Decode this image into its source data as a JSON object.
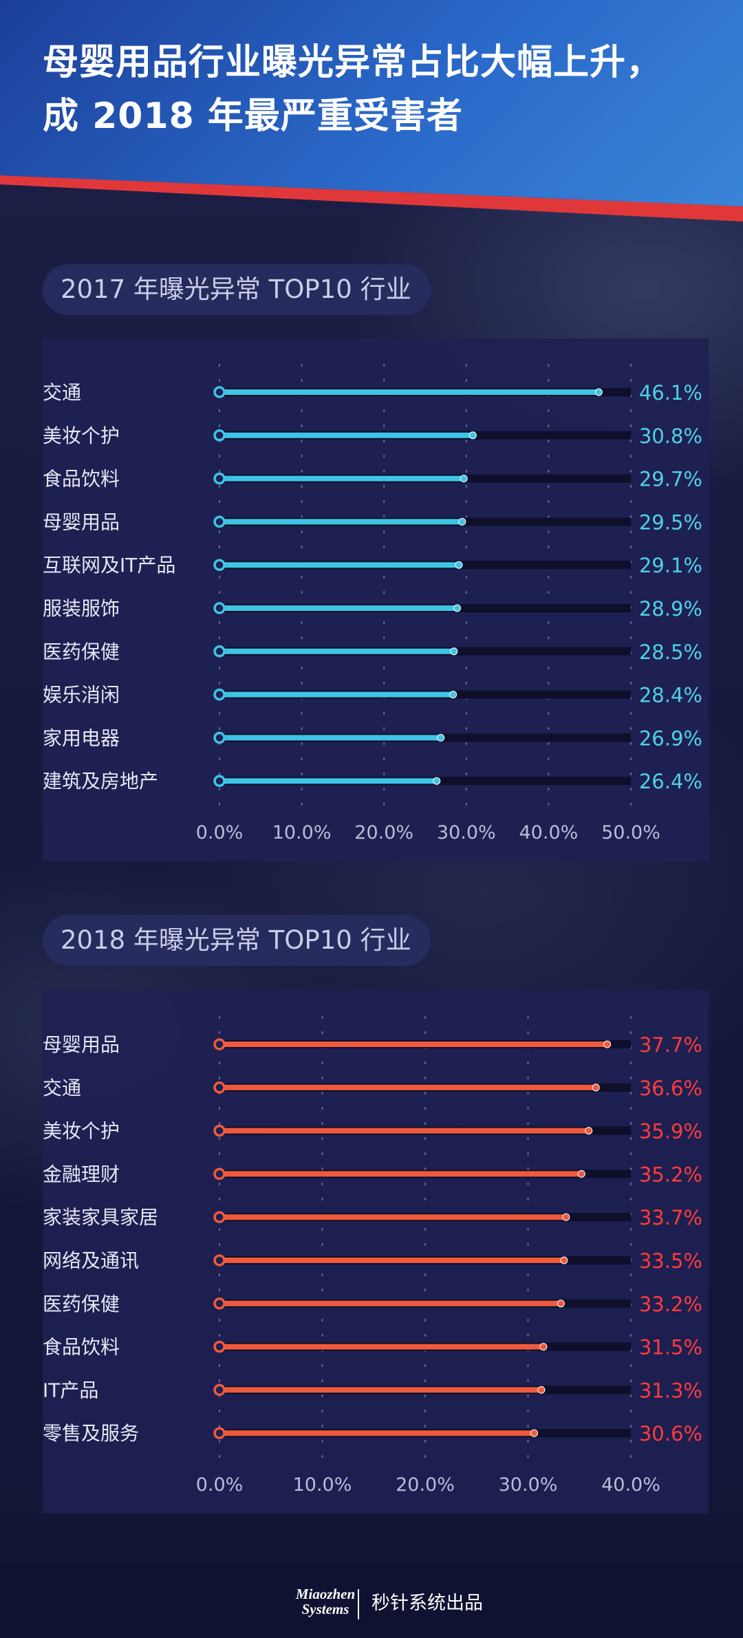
{
  "title": {
    "line1": "母婴用品行业曝光异常占比大幅上升，",
    "line2": "成 2018 年最严重受害者"
  },
  "colors": {
    "header_blue": "#2a69c9",
    "stripe_red": "#e0383a",
    "series_2017": "#3fc4e6",
    "series_2018": "#ef5a3c",
    "value_2017": "#4fd0e8",
    "value_2018": "#ff3b3b"
  },
  "footer": {
    "logo_line1": "Miaozhen",
    "logo_line2": "Systems",
    "text": "秒针系统出品"
  },
  "chart_data": [
    {
      "type": "bar",
      "title": "2017 年曝光异常 TOP10 行业",
      "categories": [
        "交通",
        "美妆个护",
        "食品饮料",
        "母婴用品",
        "互联网及IT产品",
        "服装服饰",
        "医药保健",
        "娱乐消闲",
        "家用电器",
        "建筑及房地产"
      ],
      "values": [
        46.1,
        30.8,
        29.7,
        29.5,
        29.1,
        28.9,
        28.5,
        28.4,
        26.9,
        26.4
      ],
      "value_labels": [
        "46.1%",
        "30.8%",
        "29.7%",
        "29.5%",
        "29.1%",
        "28.9%",
        "28.5%",
        "28.4%",
        "26.9%",
        "26.4%"
      ],
      "xlim": [
        0,
        50
      ],
      "ticks": [
        "0.0%",
        "10.0%",
        "20.0%",
        "30.0%",
        "40.0%",
        "50.0%"
      ],
      "xlabel": "",
      "ylabel": ""
    },
    {
      "type": "bar",
      "title": "2018 年曝光异常 TOP10 行业",
      "categories": [
        "母婴用品",
        "交通",
        "美妆个护",
        "金融理财",
        "家装家具家居",
        "网络及通讯",
        "医药保健",
        "食品饮料",
        "IT产品",
        "零售及服务"
      ],
      "values": [
        37.7,
        36.6,
        35.9,
        35.2,
        33.7,
        33.5,
        33.2,
        31.5,
        31.3,
        30.6
      ],
      "value_labels": [
        "37.7%",
        "36.6%",
        "35.9%",
        "35.2%",
        "33.7%",
        "33.5%",
        "33.2%",
        "31.5%",
        "31.3%",
        "30.6%"
      ],
      "xlim": [
        0,
        40
      ],
      "ticks": [
        "0.0%",
        "10.0%",
        "20.0%",
        "30.0%",
        "40.0%"
      ],
      "xlabel": "",
      "ylabel": ""
    }
  ]
}
